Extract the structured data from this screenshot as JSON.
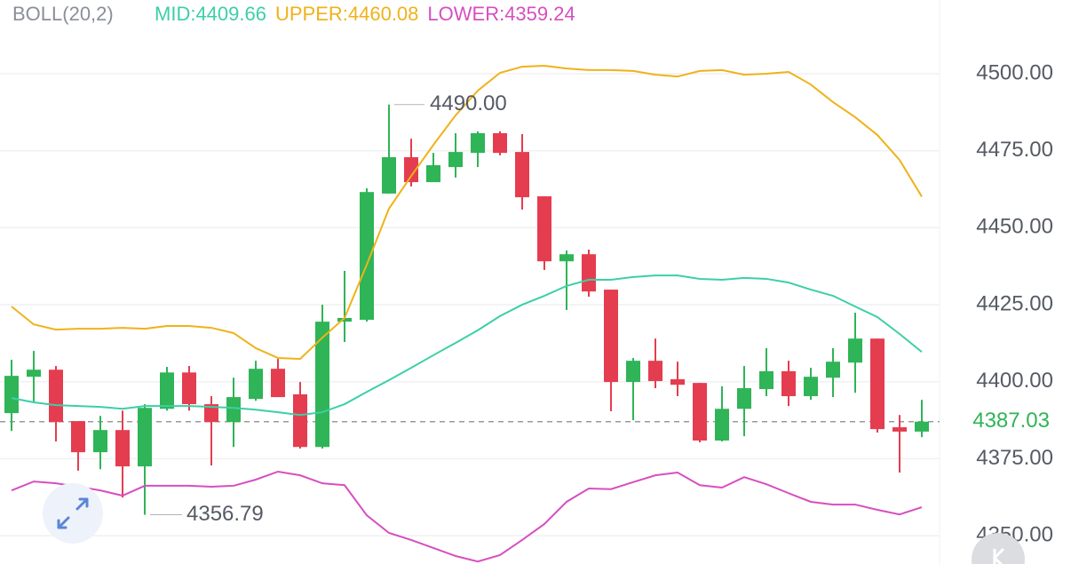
{
  "chart_data": {
    "type": "candlestick",
    "indicator": "BOLL(20,2)",
    "up_color": "#2fb457",
    "down_color": "#e43d4f",
    "open": [
      4389.8,
      4401.6,
      4403.9,
      4387.2,
      4377.1,
      4384.3,
      4372.5,
      4391.2,
      4403.0,
      4392.7,
      4386.9,
      4394.4,
      4404.2,
      4395.9,
      4378.8,
      4419.5,
      4420.1,
      4461.1,
      4472.9,
      4464.8,
      4469.7,
      4474.3,
      4480.7,
      4474.6,
      4460.2,
      4439.1,
      4441.4,
      4429.9,
      4399.9,
      4406.8,
      4400.8,
      4399.6,
      4380.9,
      4391.2,
      4397.6,
      4403.4,
      4395.3,
      4401.3,
      4406.2,
      4414.0,
      4385.2,
      4383.8
    ],
    "high": [
      4407.1,
      4410.0,
      4405.1,
      4387.2,
      4388.9,
      4390.6,
      4392.7,
      4404.8,
      4405.1,
      4395.3,
      4401.3,
      4406.8,
      4407.4,
      4399.9,
      4425.0,
      4436.0,
      4462.8,
      4490,
      4478.9,
      4474.3,
      4480.7,
      4481.3,
      4481.3,
      4480.4,
      4460.2,
      4442.6,
      4442.9,
      4429.9,
      4407.7,
      4414.0,
      4406.5,
      4399.6,
      4398.5,
      4405.1,
      4410.9,
      4406.8,
      4404.5,
      4410.9,
      4422.4,
      4414.0,
      4389.2,
      4394.1
    ],
    "low": [
      4384.0,
      4393.6,
      4380.6,
      4371.1,
      4371.6,
      4362.4,
      4356.79,
      4390.6,
      4390.6,
      4372.8,
      4378.8,
      4393.8,
      4395.0,
      4378.3,
      4378.3,
      4412.9,
      4419.5,
      4461.1,
      4463.4,
      4464.8,
      4466.3,
      4469.7,
      4473.5,
      4455.9,
      4436.3,
      4423.3,
      4427.6,
      4390.4,
      4387.5,
      4397.9,
      4395.3,
      4380.3,
      4380.6,
      4382.3,
      4395.3,
      4392.1,
      4394.1,
      4395.0,
      4396.4,
      4383.5,
      4370.5,
      4382.0
    ],
    "close": [
      4401.9,
      4403.9,
      4386.9,
      4377.1,
      4384.3,
      4372.5,
      4391.5,
      4403.0,
      4392.7,
      4386.9,
      4395.0,
      4404.2,
      4395.0,
      4378.8,
      4419.5,
      4420.7,
      4461.6,
      4472.9,
      4464.8,
      4470.3,
      4474.6,
      4480.7,
      4474.3,
      4459.9,
      4439.1,
      4441.4,
      4429.3,
      4399.9,
      4406.8,
      4400.2,
      4399.0,
      4380.9,
      4391.2,
      4397.9,
      4403.4,
      4395.3,
      4401.6,
      4406.5,
      4414.0,
      4384.6,
      4383.8,
      4387.03
    ],
    "series": [
      {
        "name": "MID:4409.66",
        "color": "#3ccfa8",
        "values": [
          4394.7,
          4393.3,
          4392.4,
          4392.1,
          4391.8,
          4391.2,
          4392.1,
          4392.1,
          4392.1,
          4391.8,
          4391.5,
          4390.9,
          4390.1,
          4389.2,
          4390.1,
          4392.7,
          4396.7,
          4400.5,
          4404.5,
          4408.6,
          4412.6,
          4416.7,
          4421.3,
          4425.0,
          4427.9,
          4431.1,
          4433.1,
          4433.1,
          4434.0,
          4434.5,
          4434.5,
          4433.4,
          4433.1,
          4433.7,
          4433.4,
          4432.2,
          4429.9,
          4427.9,
          4424.4,
          4421.0,
          4415.5,
          4409.66
        ]
      },
      {
        "name": "UPPER:4460.08",
        "color": "#f0b21a",
        "values": [
          4424.4,
          4418.6,
          4416.9,
          4417.2,
          4417.2,
          4417.5,
          4417.2,
          4418.1,
          4418.1,
          4417.5,
          4415.8,
          4410.9,
          4407.7,
          4407.4,
          4414.3,
          4420.7,
          4438.0,
          4456.2,
          4466.8,
          4476.9,
          4486.5,
          4494.5,
          4500.3,
          4502.3,
          4502.6,
          4501.7,
          4501.2,
          4501.2,
          4500.9,
          4499.7,
          4499.1,
          4500.9,
          4501.2,
          4499.7,
          4500.0,
          4500.6,
          4496.5,
          4490.8,
          4485.9,
          4480.1,
          4472.0,
          4460.08
        ]
      },
      {
        "name": "LOWER:4359.24",
        "color": "#d64fc0",
        "values": [
          4364.7,
          4367.6,
          4367.0,
          4365.9,
          4364.7,
          4363.0,
          4366.2,
          4366.2,
          4366.2,
          4365.9,
          4366.2,
          4368.2,
          4370.8,
          4369.6,
          4367.0,
          4366.4,
          4356.6,
          4350.9,
          4348.6,
          4346.0,
          4343.4,
          4341.6,
          4343.7,
          4348.6,
          4353.8,
          4361.0,
          4365.3,
          4365.1,
          4367.4,
          4369.6,
          4370.5,
          4366.4,
          4365.6,
          4369.0,
          4366.7,
          4363.8,
          4361.0,
          4360.1,
          4360.1,
          4358.4,
          4356.9,
          4359.24
        ]
      }
    ],
    "ylim": [
      4340.8,
      4512.3
    ],
    "yticks": [
      {
        "value": 4350,
        "label": "4350.00"
      },
      {
        "value": 4375,
        "label": "4375.00"
      },
      {
        "value": 4400,
        "label": "4400.00"
      },
      {
        "value": 4425,
        "label": "4425.00"
      },
      {
        "value": 4450,
        "label": "4450.00"
      },
      {
        "value": 4475,
        "label": "4475.00"
      },
      {
        "value": 4500,
        "label": "4500.00"
      }
    ],
    "grid": true,
    "high_label": "4490.00",
    "low_label": "4356.79",
    "last_price": {
      "value": 4387.03,
      "label": "4387.03"
    }
  }
}
